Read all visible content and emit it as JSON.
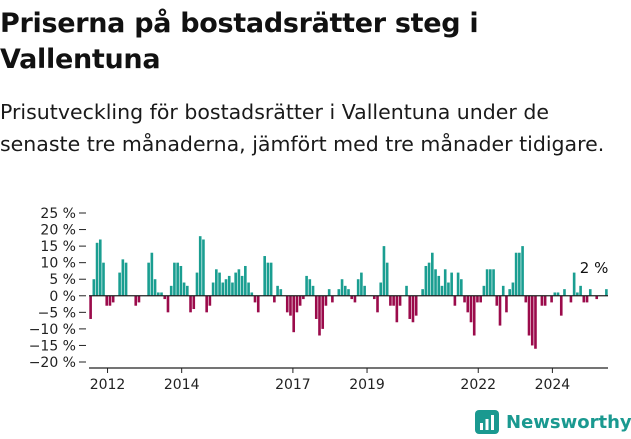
{
  "title": "Priserna på bostadsrätter steg i Vallentuna",
  "subtitle": "Prisutveckling för bostadsrätter i Vallentuna under de senaste tre månaderna, jämfört med tre månader tidigare.",
  "brand": {
    "name": "Newsworthy",
    "icon": "newsworthy-logo-icon"
  },
  "colors": {
    "positive": "#1a9e91",
    "negative": "#9b0b4b",
    "axis": "#222222",
    "brand": "#1a9990"
  },
  "chart_data": {
    "type": "bar",
    "title": "",
    "xlabel": "",
    "ylabel": "",
    "ylim": [
      -20,
      25
    ],
    "y_ticks": [
      25,
      20,
      15,
      10,
      5,
      0,
      -5,
      -10,
      -15,
      -20
    ],
    "y_tick_labels": [
      "25 %",
      "20 %",
      "15 %",
      "10 %",
      "5 %",
      "0 %",
      "−5 %",
      "−10 %",
      "−15 %",
      "−20 %"
    ],
    "x_start_year": 2011.5,
    "x_end_year": 2025.5,
    "x_ticks": [
      2012,
      2014,
      2017,
      2019,
      2022,
      2024
    ],
    "x_tick_labels": [
      "2012",
      "2014",
      "2017",
      "2019",
      "2022",
      "2024"
    ],
    "grid": false,
    "legend": "none",
    "annotation": {
      "text": "2 %"
    },
    "values": [
      -7,
      5,
      16,
      17,
      10,
      -3,
      -3,
      -2,
      0,
      7,
      11,
      10,
      0,
      0,
      -3,
      -2,
      0,
      0,
      10,
      13,
      5,
      1,
      1,
      -1,
      -5,
      3,
      10,
      10,
      9,
      4,
      3,
      -5,
      -4,
      7,
      18,
      17,
      -5,
      -3,
      4,
      8,
      7,
      4,
      5,
      6,
      4,
      7,
      8,
      6,
      9,
      4,
      1,
      -2,
      -5,
      0,
      12,
      10,
      10,
      -2,
      3,
      2,
      0,
      -5,
      -6,
      -11,
      -5,
      -3,
      -1,
      6,
      5,
      3,
      -7,
      -12,
      -10,
      -3,
      2,
      -2,
      0,
      2,
      5,
      3,
      2,
      -1,
      -2,
      5,
      7,
      3,
      0,
      0,
      -1,
      -5,
      4,
      15,
      10,
      -3,
      -3,
      -8,
      -3,
      0,
      3,
      -7,
      -8,
      -6,
      0,
      2,
      9,
      10,
      13,
      8,
      6,
      3,
      8,
      4,
      7,
      -3,
      7,
      5,
      -2,
      -5,
      -8,
      -12,
      -2,
      -2,
      3,
      8,
      8,
      8,
      -3,
      -9,
      3,
      -5,
      2,
      4,
      13,
      13,
      15,
      -2,
      -12,
      -15,
      -16,
      0,
      -3,
      -3,
      0,
      -2,
      1,
      1,
      -6,
      2,
      0,
      -2,
      7,
      1,
      3,
      -2,
      -2,
      2,
      0,
      -1,
      0,
      0,
      2
    ]
  }
}
